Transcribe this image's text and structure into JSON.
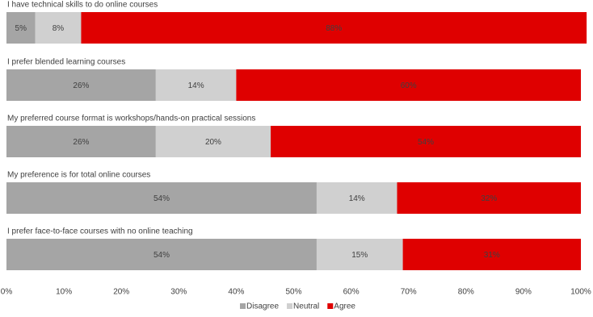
{
  "chart_data": {
    "type": "stacked-barh",
    "categories": [
      "I have technical skills to do online courses",
      "I prefer blended learning courses",
      "My preferred course format is workshops/hands-on practical sessions",
      "My preference is for total online courses",
      "I prefer face-to-face courses with no online teaching"
    ],
    "series": [
      {
        "name": "Disagree",
        "color": "#a5a5a5",
        "values": [
          5,
          26,
          26,
          54,
          54
        ],
        "value_labels": [
          "5%",
          "26%",
          "26%",
          "54%",
          "54%"
        ]
      },
      {
        "name": "Neutral",
        "color": "#d0d0d0",
        "values": [
          8,
          14,
          20,
          14,
          15
        ],
        "value_labels": [
          "8%",
          "14%",
          "20%",
          "14%",
          "15%"
        ]
      },
      {
        "name": "Agree",
        "color": "#df0000",
        "values": [
          88,
          60,
          54,
          32,
          31
        ],
        "value_labels": [
          "88%",
          "60%",
          "54%",
          "32%",
          "31%"
        ]
      }
    ],
    "xlim": [
      0,
      100
    ],
    "xticks": [
      {
        "value": 0,
        "label": "0%"
      },
      {
        "value": 10,
        "label": "10%"
      },
      {
        "value": 20,
        "label": "20%"
      },
      {
        "value": 30,
        "label": "30%"
      },
      {
        "value": 40,
        "label": "40%"
      },
      {
        "value": 50,
        "label": "50%"
      },
      {
        "value": 60,
        "label": "60%"
      },
      {
        "value": 70,
        "label": "70%"
      },
      {
        "value": 80,
        "label": "80%"
      },
      {
        "value": 90,
        "label": "90%"
      },
      {
        "value": 100,
        "label": "100%"
      }
    ],
    "legend": "bottom"
  }
}
